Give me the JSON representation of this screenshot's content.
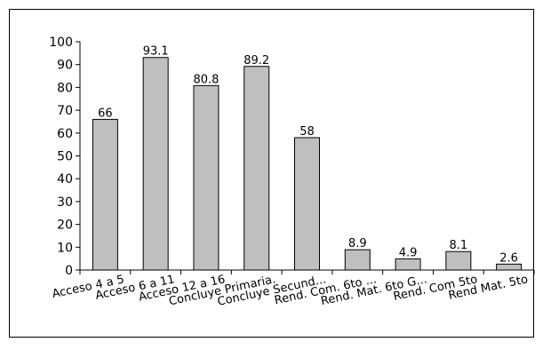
{
  "chart_data": {
    "type": "bar",
    "title": "",
    "xlabel": "",
    "ylabel": "",
    "ylim": [
      0,
      100
    ],
    "yticks": [
      0,
      10,
      20,
      30,
      40,
      50,
      60,
      70,
      80,
      90,
      100
    ],
    "grid": false,
    "legend": "none",
    "bar_color": "#bfbfbf",
    "categories": [
      "Acceso 4 a 5",
      "Acceso 6 a 11",
      "Acceso 12 a 16",
      "Concluye Primaria.",
      "Concluye Secund...",
      "Rend. Com. 6to ...",
      "Rend. Mat. 6to G...",
      "Rend. Com 5to",
      "Rend Mat. 5to"
    ],
    "values": [
      66,
      93.1,
      80.8,
      89.2,
      58,
      8.9,
      4.9,
      8.1,
      2.6
    ],
    "data_labels": [
      "66",
      "93.1",
      "80.8",
      "89.2",
      "58",
      "8.9",
      "4.9",
      "8.1",
      "2.6"
    ]
  }
}
